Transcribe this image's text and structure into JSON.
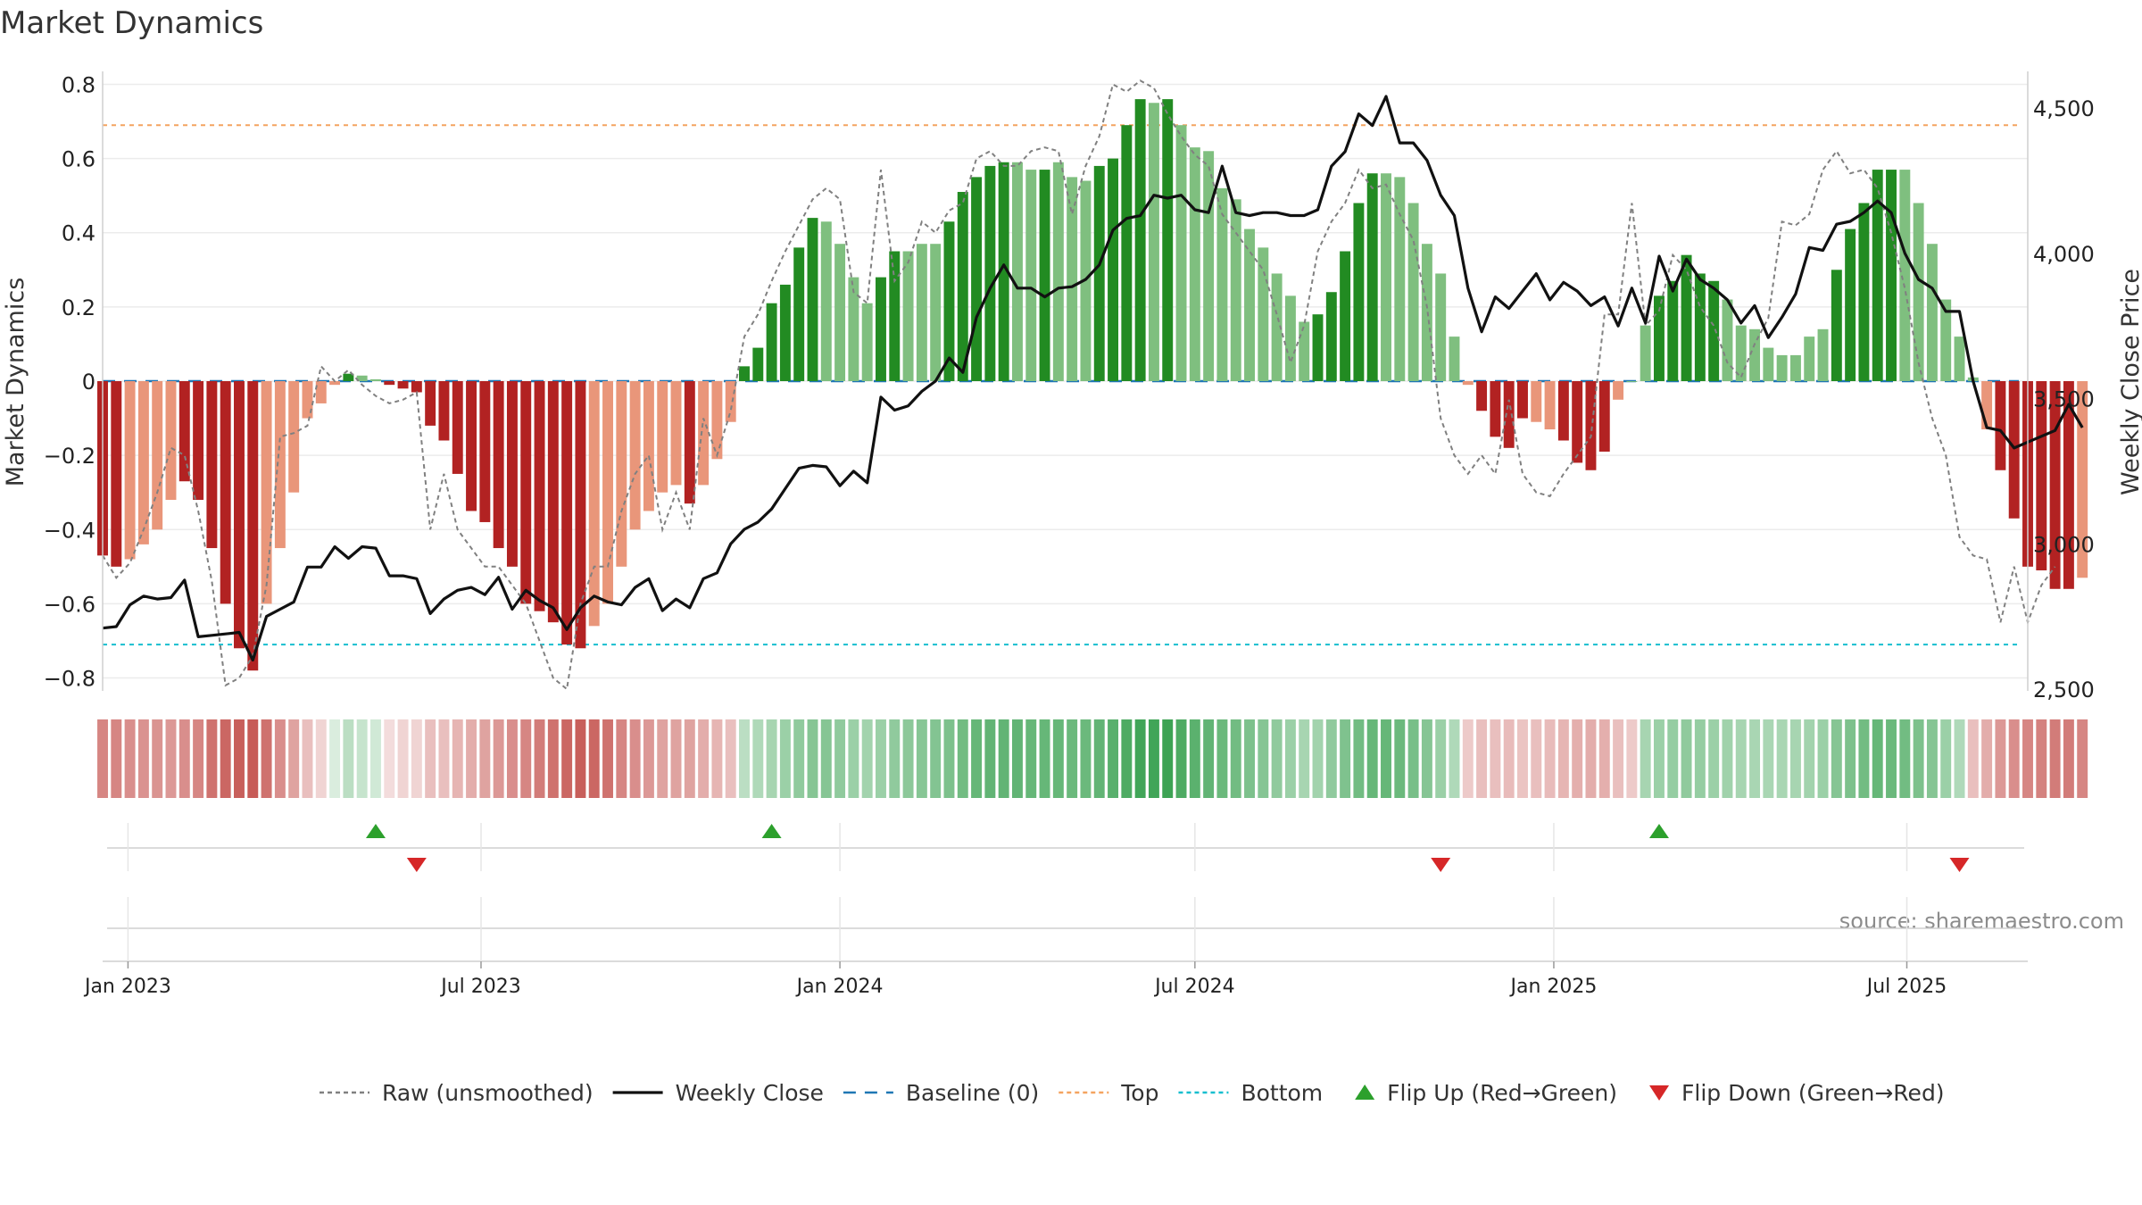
{
  "chart_data": {
    "type": "bar",
    "title": "Market Dynamics",
    "ylabel": "Market Dynamics",
    "y2label": "Weekly Close Price",
    "ylim": [
      -0.83,
      0.83
    ],
    "y2lim": [
      2500,
      4620
    ],
    "y_ticks": [
      -0.8,
      -0.6,
      -0.4,
      -0.2,
      0,
      0.2,
      0.4,
      0.6,
      0.8
    ],
    "y_tick_labels": [
      "−0.8",
      "−0.6",
      "−0.4",
      "−0.2",
      "0",
      "0.2",
      "0.4",
      "0.6",
      "0.8"
    ],
    "y2_ticks": [
      2500,
      3000,
      3500,
      4000,
      4500
    ],
    "y2_tick_labels": [
      "2,500",
      "3,000",
      "3,500",
      "4,000",
      "4,500"
    ],
    "x_start": "2022-12-19",
    "x_end": "2025-09-01",
    "x_ticks": [
      {
        "date": "2023-01-01",
        "label": "Jan 2023"
      },
      {
        "date": "2023-07-01",
        "label": "Jul 2023"
      },
      {
        "date": "2024-01-01",
        "label": "Jan 2024"
      },
      {
        "date": "2024-07-01",
        "label": "Jul 2024"
      },
      {
        "date": "2025-01-01",
        "label": "Jan 2025"
      },
      {
        "date": "2025-07-01",
        "label": "Jul 2025"
      }
    ],
    "first_week": "2022-12-19",
    "top_line": 0.69,
    "bottom_line": -0.71,
    "baseline": 0,
    "grid": true,
    "legend_position": "bottom",
    "colors": {
      "strong_green": "#228b22",
      "light_green": "#7fbf7f",
      "strong_red": "#b22222",
      "light_red": "#e9967a",
      "close_line": "#111111",
      "raw_line": "#808080",
      "baseline": "#1f77b4",
      "top": "#f4a460",
      "bottom": "#17becf",
      "flip_up": "#2ca02c",
      "flip_down": "#d62728"
    },
    "bars": [
      -0.47,
      -0.5,
      -0.48,
      -0.44,
      -0.4,
      -0.32,
      -0.27,
      -0.32,
      -0.45,
      -0.6,
      -0.72,
      -0.78,
      -0.6,
      -0.45,
      -0.3,
      -0.1,
      -0.06,
      -0.01,
      0.02,
      0.015,
      0.005,
      -0.01,
      -0.02,
      -0.03,
      -0.12,
      -0.16,
      -0.25,
      -0.35,
      -0.38,
      -0.45,
      -0.5,
      -0.6,
      -0.62,
      -0.65,
      -0.71,
      -0.72,
      -0.66,
      -0.6,
      -0.5,
      -0.4,
      -0.35,
      -0.3,
      -0.28,
      -0.33,
      -0.28,
      -0.21,
      -0.11,
      0.04,
      0.09,
      0.21,
      0.26,
      0.36,
      0.44,
      0.43,
      0.37,
      0.28,
      0.21,
      0.28,
      0.35,
      0.35,
      0.37,
      0.37,
      0.43,
      0.51,
      0.55,
      0.58,
      0.59,
      0.59,
      0.57,
      0.57,
      0.59,
      0.55,
      0.54,
      0.58,
      0.6,
      0.69,
      0.76,
      0.75,
      0.76,
      0.69,
      0.63,
      0.62,
      0.52,
      0.49,
      0.41,
      0.36,
      0.29,
      0.23,
      0.16,
      0.18,
      0.24,
      0.35,
      0.48,
      0.56,
      0.56,
      0.55,
      0.48,
      0.37,
      0.29,
      0.12,
      -0.01,
      -0.08,
      -0.15,
      -0.18,
      -0.1,
      -0.11,
      -0.13,
      -0.16,
      -0.22,
      -0.24,
      -0.19,
      -0.05,
      0.0,
      0.15,
      0.23,
      0.27,
      0.34,
      0.29,
      0.27,
      0.22,
      0.15,
      0.14,
      0.09,
      0.07,
      0.07,
      0.12,
      0.14,
      0.3,
      0.41,
      0.48,
      0.57,
      0.57,
      0.57,
      0.48,
      0.37,
      0.22,
      0.12,
      0.01,
      -0.13,
      -0.24,
      -0.37,
      -0.5,
      -0.51,
      -0.56,
      -0.56,
      -0.53
    ],
    "bar_strength": [
      "s",
      "s",
      "l",
      "l",
      "l",
      "l",
      "s",
      "s",
      "s",
      "s",
      "s",
      "s",
      "l",
      "l",
      "l",
      "l",
      "l",
      "l",
      "s",
      "l",
      "l",
      "s",
      "s",
      "s",
      "s",
      "s",
      "s",
      "s",
      "s",
      "s",
      "s",
      "s",
      "s",
      "s",
      "s",
      "s",
      "l",
      "l",
      "l",
      "l",
      "l",
      "l",
      "l",
      "s",
      "l",
      "l",
      "l",
      "s",
      "s",
      "s",
      "s",
      "s",
      "s",
      "l",
      "l",
      "l",
      "l",
      "s",
      "s",
      "l",
      "l",
      "l",
      "s",
      "s",
      "s",
      "s",
      "s",
      "l",
      "l",
      "s",
      "l",
      "l",
      "l",
      "s",
      "s",
      "s",
      "s",
      "l",
      "s",
      "l",
      "l",
      "l",
      "l",
      "l",
      "l",
      "l",
      "l",
      "l",
      "l",
      "s",
      "s",
      "s",
      "s",
      "s",
      "l",
      "l",
      "l",
      "l",
      "l",
      "l",
      "l",
      "s",
      "s",
      "s",
      "s",
      "l",
      "l",
      "s",
      "s",
      "s",
      "s",
      "l",
      "l",
      "l",
      "s",
      "s",
      "s",
      "s",
      "s",
      "l",
      "l",
      "l",
      "l",
      "l",
      "l",
      "l",
      "l",
      "s",
      "s",
      "s",
      "s",
      "s",
      "l",
      "l",
      "l",
      "l",
      "l",
      "l",
      "l",
      "s",
      "s",
      "s",
      "s",
      "s",
      "s",
      "l"
    ],
    "close": [
      2710,
      2715,
      2790,
      2820,
      2810,
      2815,
      2875,
      2680,
      2685,
      2690,
      2695,
      2600,
      2750,
      2775,
      2800,
      2920,
      2920,
      2990,
      2950,
      2990,
      2985,
      2890,
      2890,
      2880,
      2760,
      2810,
      2840,
      2850,
      2825,
      2885,
      2775,
      2840,
      2805,
      2780,
      2705,
      2780,
      2820,
      2800,
      2790,
      2850,
      2880,
      2770,
      2810,
      2780,
      2880,
      2900,
      3000,
      3050,
      3075,
      3120,
      3190,
      3260,
      3270,
      3265,
      3200,
      3250,
      3210,
      3505,
      3460,
      3475,
      3525,
      3560,
      3640,
      3590,
      3780,
      3880,
      3960,
      3880,
      3880,
      3850,
      3880,
      3885,
      3910,
      3960,
      4080,
      4120,
      4130,
      4200,
      4190,
      4200,
      4150,
      4140,
      4300,
      4140,
      4130,
      4140,
      4140,
      4130,
      4130,
      4150,
      4300,
      4350,
      4480,
      4440,
      4540,
      4380,
      4380,
      4320,
      4200,
      4130,
      3880,
      3730,
      3850,
      3810,
      3870,
      3930,
      3840,
      3900,
      3870,
      3820,
      3850,
      3750,
      3880,
      3760,
      3990,
      3870,
      3980,
      3910,
      3880,
      3840,
      3760,
      3820,
      3710,
      3780,
      3860,
      4020,
      4010,
      4100,
      4110,
      4140,
      4180,
      4140,
      4000,
      3910,
      3880,
      3800,
      3800,
      3560,
      3400,
      3390,
      3330,
      3350,
      3370,
      3390,
      3480,
      3400
    ],
    "raw": [
      -0.47,
      -0.53,
      -0.49,
      -0.4,
      -0.3,
      -0.18,
      -0.2,
      -0.35,
      -0.54,
      -0.82,
      -0.8,
      -0.74,
      -0.55,
      -0.15,
      -0.14,
      -0.12,
      0.04,
      0.0,
      0.03,
      -0.01,
      -0.04,
      -0.06,
      -0.05,
      -0.03,
      -0.4,
      -0.25,
      -0.4,
      -0.45,
      -0.5,
      -0.5,
      -0.55,
      -0.6,
      -0.7,
      -0.8,
      -0.83,
      -0.6,
      -0.5,
      -0.5,
      -0.35,
      -0.25,
      -0.2,
      -0.4,
      -0.3,
      -0.4,
      -0.1,
      -0.2,
      -0.08,
      0.12,
      0.18,
      0.27,
      0.35,
      0.42,
      0.49,
      0.52,
      0.49,
      0.24,
      0.21,
      0.57,
      0.27,
      0.32,
      0.43,
      0.4,
      0.46,
      0.48,
      0.6,
      0.62,
      0.58,
      0.58,
      0.62,
      0.63,
      0.62,
      0.45,
      0.58,
      0.66,
      0.8,
      0.78,
      0.81,
      0.79,
      0.72,
      0.66,
      0.61,
      0.58,
      0.45,
      0.4,
      0.35,
      0.3,
      0.18,
      0.05,
      0.15,
      0.35,
      0.43,
      0.48,
      0.57,
      0.52,
      0.53,
      0.45,
      0.38,
      0.2,
      -0.1,
      -0.2,
      -0.25,
      -0.2,
      -0.25,
      -0.05,
      -0.25,
      -0.3,
      -0.31,
      -0.25,
      -0.2,
      -0.15,
      0.18,
      0.18,
      0.48,
      0.15,
      0.19,
      0.34,
      0.3,
      0.2,
      0.15,
      0.05,
      0.01,
      0.1,
      0.17,
      0.43,
      0.42,
      0.45,
      0.57,
      0.62,
      0.56,
      0.57,
      0.52,
      0.4,
      0.25,
      0.05,
      -0.1,
      -0.2,
      -0.42,
      -0.47,
      -0.48,
      -0.65,
      -0.5,
      -0.65,
      -0.55,
      -0.5
    ],
    "heat_strip": [
      -0.5,
      -0.5,
      -0.45,
      -0.43,
      -0.42,
      -0.4,
      -0.45,
      -0.5,
      -0.6,
      -0.65,
      -0.7,
      -0.72,
      -0.6,
      -0.45,
      -0.35,
      -0.2,
      -0.1,
      0.05,
      0.2,
      0.15,
      0.1,
      -0.05,
      -0.1,
      -0.1,
      -0.2,
      -0.2,
      -0.25,
      -0.3,
      -0.35,
      -0.4,
      -0.45,
      -0.5,
      -0.55,
      -0.6,
      -0.65,
      -0.7,
      -0.65,
      -0.6,
      -0.5,
      -0.45,
      -0.4,
      -0.35,
      -0.35,
      -0.35,
      -0.3,
      -0.25,
      -0.2,
      0.2,
      0.25,
      0.3,
      0.35,
      0.4,
      0.45,
      0.45,
      0.4,
      0.35,
      0.32,
      0.35,
      0.4,
      0.42,
      0.44,
      0.46,
      0.5,
      0.55,
      0.6,
      0.62,
      0.62,
      0.62,
      0.6,
      0.6,
      0.6,
      0.58,
      0.58,
      0.62,
      0.66,
      0.72,
      0.78,
      0.78,
      0.8,
      0.72,
      0.65,
      0.62,
      0.58,
      0.55,
      0.5,
      0.45,
      0.4,
      0.35,
      0.3,
      0.32,
      0.4,
      0.48,
      0.55,
      0.6,
      0.6,
      0.58,
      0.52,
      0.45,
      0.35,
      0.25,
      -0.15,
      -0.2,
      -0.2,
      -0.22,
      -0.18,
      -0.2,
      -0.22,
      -0.25,
      -0.28,
      -0.3,
      -0.28,
      -0.2,
      -0.15,
      0.3,
      0.35,
      0.38,
      0.4,
      0.38,
      0.35,
      0.33,
      0.3,
      0.28,
      0.28,
      0.28,
      0.3,
      0.32,
      0.35,
      0.45,
      0.5,
      0.55,
      0.6,
      0.58,
      0.55,
      0.5,
      0.45,
      0.35,
      0.25,
      -0.2,
      -0.3,
      -0.4,
      -0.45,
      -0.5,
      -0.52,
      -0.55,
      -0.55,
      -0.5
    ],
    "flip_up": [
      "2023-05-08",
      "2023-11-27",
      "2025-02-24"
    ],
    "flip_down": [
      "2023-05-29",
      "2024-11-04",
      "2025-07-28"
    ],
    "legend": [
      {
        "type": "dashed-line",
        "color": "#808080",
        "label": "Raw (unsmoothed)"
      },
      {
        "type": "line",
        "color": "#111111",
        "label": "Weekly Close"
      },
      {
        "type": "long-dash-line",
        "color": "#1f77b4",
        "label": "Baseline (0)"
      },
      {
        "type": "dashed-line",
        "color": "#f4a460",
        "label": "Top"
      },
      {
        "type": "dashed-line",
        "color": "#17becf",
        "label": "Bottom"
      },
      {
        "type": "triangle-up",
        "color": "#2ca02c",
        "label": "Flip Up (Red→Green)"
      },
      {
        "type": "triangle-down",
        "color": "#d62728",
        "label": "Flip Down (Green→Red)"
      }
    ],
    "source": "source: sharemaestro.com"
  }
}
